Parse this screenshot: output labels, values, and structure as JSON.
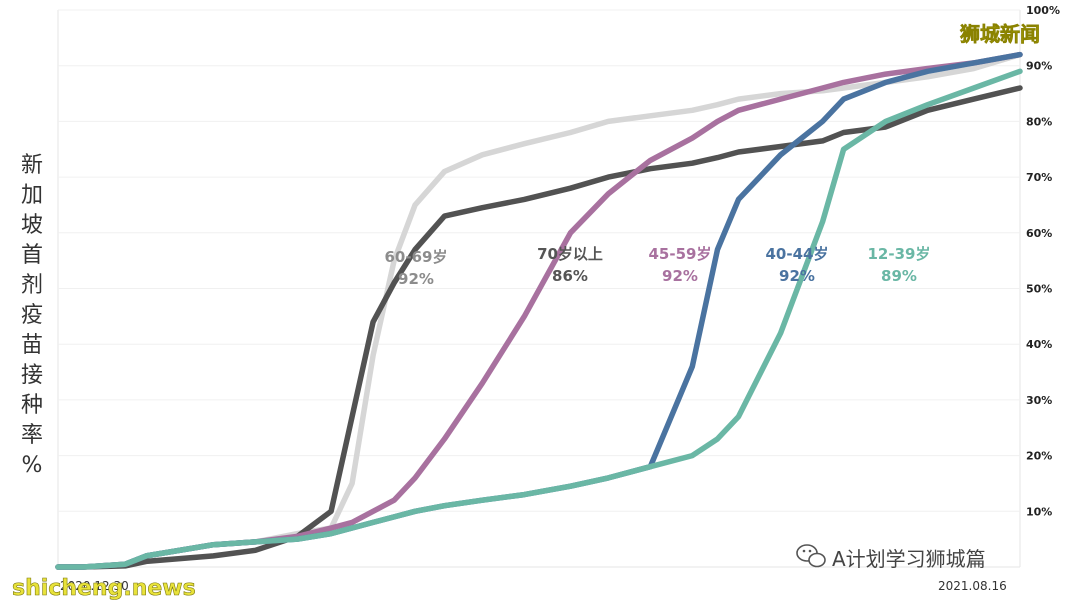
{
  "branding": {
    "top_right": "狮城新闻",
    "bottom_left": "shicheng.news",
    "watermark": "A计划学习狮城篇",
    "watermark_icon": "wechat-icon"
  },
  "chart_data": {
    "type": "line",
    "ylabel": "新加坡首剂疫苗接种率%",
    "x_start_label": "2020.12.30",
    "x_end_label": "2021.08.16",
    "x": [
      "2020-12-30",
      "2021-01-05",
      "2021-01-15",
      "2021-01-20",
      "2021-02-05",
      "2021-02-15",
      "2021-02-25",
      "2021-03-05",
      "2021-03-10",
      "2021-03-15",
      "2021-03-20",
      "2021-03-25",
      "2021-04-01",
      "2021-04-10",
      "2021-04-20",
      "2021-05-01",
      "2021-05-10",
      "2021-05-20",
      "2021-05-30",
      "2021-06-05",
      "2021-06-10",
      "2021-06-20",
      "2021-06-30",
      "2021-07-05",
      "2021-07-15",
      "2021-07-25",
      "2021-08-05",
      "2021-08-16"
    ],
    "y_ticks": [
      "10%",
      "20%",
      "30%",
      "40%",
      "50%",
      "60%",
      "70%",
      "80%",
      "90%",
      "100%"
    ],
    "ylim": [
      0,
      100
    ],
    "series": [
      {
        "name": "60-69岁",
        "final_label": "92%",
        "color": "#d6d6d6",
        "values": [
          0,
          0,
          0.5,
          2,
          4,
          4.5,
          6,
          7,
          15,
          38,
          55,
          65,
          71,
          74,
          76,
          78,
          80,
          81,
          82,
          83,
          84,
          85,
          85.5,
          86,
          87,
          88,
          89.5,
          92
        ]
      },
      {
        "name": "70岁以上",
        "final_label": "86%",
        "color": "#525252",
        "values": [
          0,
          0,
          0.2,
          1,
          2,
          3,
          5.5,
          10,
          27,
          44,
          51,
          57,
          63,
          64.5,
          66,
          68,
          70,
          71.5,
          72.5,
          73.5,
          74.5,
          75.5,
          76.5,
          78,
          79,
          82,
          84,
          86
        ]
      },
      {
        "name": "45-59岁",
        "final_label": "92%",
        "color": "#a8719f",
        "values": [
          0,
          0,
          0.5,
          2,
          4,
          4.5,
          5.5,
          7,
          8,
          10,
          12,
          16,
          23,
          33,
          45,
          60,
          67,
          73,
          77,
          80,
          82,
          84,
          86,
          87,
          88.5,
          89.5,
          90.5,
          92
        ]
      },
      {
        "name": "40-44岁",
        "final_label": "92%",
        "color": "#4a73a0",
        "values": [
          0,
          0,
          0.5,
          2,
          4,
          4.5,
          5,
          6,
          7,
          8,
          9,
          10,
          11,
          12,
          13,
          14.5,
          16,
          18,
          36,
          57,
          66,
          74,
          80,
          84,
          87,
          89,
          90.5,
          92
        ]
      },
      {
        "name": "12-39岁",
        "final_label": "89%",
        "color": "#6ab7a5",
        "values": [
          0,
          0,
          0.5,
          2,
          4,
          4.5,
          5,
          6,
          7,
          8,
          9,
          10,
          11,
          12,
          13,
          14.5,
          16,
          18,
          20,
          23,
          27,
          42,
          62,
          75,
          80,
          83,
          86,
          89
        ]
      }
    ],
    "grid": "horizontal",
    "legend": "inline labels"
  }
}
